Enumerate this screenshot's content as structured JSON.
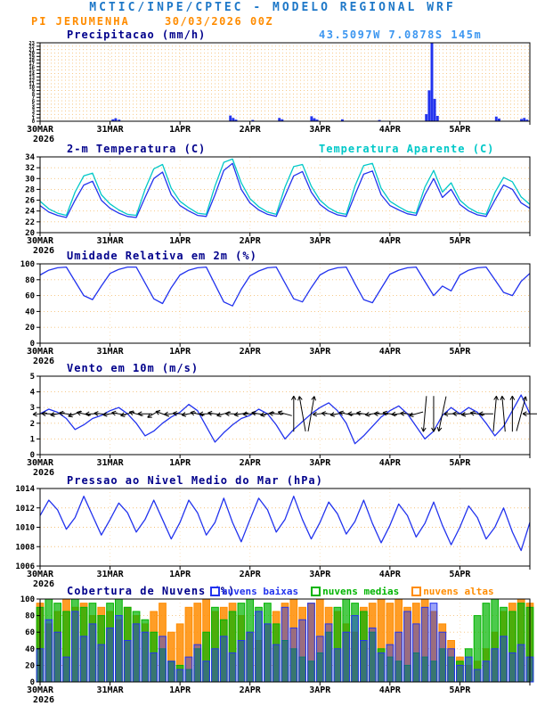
{
  "header": {
    "title": "MCTIC/INPE/CPTEC - MODELO REGIONAL WRF",
    "station": "PI JERUMENHA",
    "run": "30/03/2026 00Z",
    "coords": "43.5097W 7.0878S 145m"
  },
  "x_axis": {
    "labels": [
      "30MAR",
      "31MAR",
      "1APR",
      "2APR",
      "3APR",
      "4APR",
      "5APR"
    ],
    "year": "2026",
    "days_total": 7,
    "time_step_days": 0.125
  },
  "colors": {
    "title_blue": "#1e78c8",
    "light_blue": "#3c96f0",
    "orange": "#ff8c00",
    "navy": "#00008b",
    "blue": "#2233ee",
    "cyan": "#00c8c8",
    "green": "#00b400",
    "grid": "#f0a030",
    "black": "#000000"
  },
  "chart_data": [
    {
      "id": "precipitacao",
      "type": "bar",
      "title": "Precipitacao (mm/h)",
      "ylim": [
        0,
        23
      ],
      "ytick_step": 1,
      "bar_color_key": "blue",
      "bars": [
        [
          1.04,
          0.5
        ],
        [
          1.08,
          0.8
        ],
        [
          1.13,
          0.4
        ],
        [
          2.72,
          1.6
        ],
        [
          2.76,
          0.9
        ],
        [
          2.8,
          0.4
        ],
        [
          3.04,
          0.3
        ],
        [
          3.42,
          0.9
        ],
        [
          3.46,
          0.5
        ],
        [
          3.88,
          1.4
        ],
        [
          3.92,
          0.8
        ],
        [
          3.96,
          0.4
        ],
        [
          4.32,
          0.5
        ],
        [
          4.85,
          0.3
        ],
        [
          5.52,
          2.0
        ],
        [
          5.56,
          9.0
        ],
        [
          5.6,
          23.0
        ],
        [
          5.64,
          6.5
        ],
        [
          5.68,
          1.5
        ],
        [
          6.52,
          1.3
        ],
        [
          6.56,
          0.7
        ],
        [
          6.88,
          0.6
        ],
        [
          6.92,
          0.9
        ],
        [
          6.96,
          0.4
        ]
      ]
    },
    {
      "id": "temperatura",
      "type": "line",
      "title": "2-m Temperatura (C)",
      "title2": "Temperatura Aparente (C)",
      "ylim": [
        20,
        34
      ],
      "ytick_step": 2,
      "series": [
        {
          "name": "2-m Temperatura (C)",
          "color_key": "blue",
          "values": [
            25.0,
            23.8,
            23.2,
            22.8,
            26.0,
            28.8,
            29.5,
            26.0,
            24.5,
            23.6,
            23.0,
            22.8,
            26.5,
            30.0,
            31.2,
            27.0,
            25.0,
            24.0,
            23.2,
            23.0,
            27.0,
            31.5,
            32.8,
            28.0,
            25.5,
            24.2,
            23.4,
            23.0,
            26.8,
            30.5,
            31.3,
            27.5,
            25.2,
            24.0,
            23.3,
            23.0,
            27.0,
            30.8,
            31.4,
            27.0,
            25.0,
            24.2,
            23.5,
            23.2,
            27.0,
            30.0,
            26.5,
            28.0,
            25.2,
            24.0,
            23.3,
            23.0,
            26.0,
            28.8,
            28.0,
            25.5,
            24.5
          ]
        },
        {
          "name": "Temperatura Aparente (C)",
          "color_key": "cyan",
          "values": [
            25.8,
            24.4,
            23.6,
            23.2,
            27.5,
            30.5,
            31.0,
            27.0,
            25.3,
            24.2,
            23.4,
            23.2,
            28.0,
            31.8,
            32.6,
            28.2,
            25.8,
            24.6,
            23.6,
            23.4,
            28.6,
            33.0,
            33.6,
            29.2,
            26.3,
            24.8,
            23.8,
            23.4,
            28.4,
            32.2,
            32.6,
            28.6,
            26.0,
            24.6,
            23.7,
            23.4,
            28.6,
            32.4,
            32.8,
            28.2,
            25.8,
            24.8,
            23.9,
            23.6,
            28.4,
            31.5,
            27.5,
            29.2,
            26.0,
            24.6,
            23.7,
            23.4,
            27.4,
            30.2,
            29.4,
            26.6,
            25.2
          ]
        }
      ]
    },
    {
      "id": "umidade",
      "type": "line",
      "title": "Umidade Relativa em 2m (%)",
      "ylim": [
        0,
        100
      ],
      "ytick_step": 20,
      "series": [
        {
          "name": "Umidade Relativa em 2m (%)",
          "color_key": "blue",
          "values": [
            86,
            92,
            95,
            96,
            78,
            60,
            55,
            72,
            88,
            93,
            96,
            96,
            76,
            56,
            50,
            70,
            86,
            92,
            95,
            96,
            74,
            52,
            47,
            68,
            85,
            91,
            95,
            96,
            76,
            56,
            52,
            70,
            86,
            92,
            95,
            96,
            75,
            55,
            51,
            69,
            87,
            92,
            95,
            96,
            78,
            60,
            72,
            66,
            86,
            92,
            95,
            96,
            80,
            64,
            60,
            78,
            88
          ]
        }
      ]
    },
    {
      "id": "vento",
      "type": "line",
      "title": "Vento em 10m (m/s)",
      "ylim": [
        0,
        5
      ],
      "ytick_step": 1,
      "series": [
        {
          "name": "Vento em 10m (m/s)",
          "color_key": "blue",
          "values": [
            2.6,
            2.9,
            2.7,
            2.3,
            1.6,
            1.9,
            2.3,
            2.5,
            2.8,
            3.0,
            2.6,
            2.0,
            1.2,
            1.5,
            2.0,
            2.4,
            2.7,
            3.2,
            2.8,
            1.8,
            0.8,
            1.4,
            1.9,
            2.3,
            2.5,
            2.9,
            2.6,
            1.9,
            1.0,
            1.6,
            2.1,
            2.6,
            3.0,
            3.3,
            2.8,
            2.0,
            0.7,
            1.2,
            1.8,
            2.4,
            2.8,
            3.1,
            2.6,
            1.8,
            1.0,
            1.5,
            2.5,
            3.0,
            2.6,
            3.0,
            2.7,
            2.0,
            1.2,
            1.8,
            2.8,
            3.8,
            2.6
          ]
        }
      ],
      "arrows": {
        "y_center": 2.6,
        "dirs_deg": [
          185,
          178,
          190,
          172,
          200,
          168,
          182,
          175,
          188,
          170,
          195,
          165,
          180,
          210,
          160,
          185,
          175,
          190,
          168,
          182,
          172,
          195,
          178,
          188,
          182,
          170,
          192,
          176,
          165,
          90,
          100,
          80,
          185,
          175,
          190,
          168,
          180,
          172,
          188,
          178,
          170,
          185,
          175,
          195,
          265,
          270,
          258,
          182,
          178,
          188,
          172,
          180,
          85,
          95,
          90,
          75,
          180
        ]
      }
    },
    {
      "id": "pressao",
      "type": "line",
      "title": "Pressao ao Nivel Medio do Mar (hPa)",
      "ylim": [
        1006,
        1014
      ],
      "ytick_step": 2,
      "series": [
        {
          "name": "Pressao ao Nivel Medio do Mar (hPa)",
          "color_key": "blue",
          "values": [
            1011.2,
            1012.8,
            1011.8,
            1009.8,
            1011.0,
            1013.2,
            1011.2,
            1009.2,
            1010.8,
            1012.5,
            1011.5,
            1009.5,
            1010.8,
            1012.8,
            1010.8,
            1008.8,
            1010.5,
            1012.8,
            1011.5,
            1009.2,
            1010.5,
            1013.0,
            1010.5,
            1008.5,
            1010.8,
            1013.0,
            1011.8,
            1009.5,
            1010.8,
            1013.2,
            1010.8,
            1008.8,
            1010.5,
            1012.6,
            1011.4,
            1009.3,
            1010.6,
            1012.8,
            1010.4,
            1008.4,
            1010.2,
            1012.4,
            1011.2,
            1009.0,
            1010.4,
            1012.6,
            1010.2,
            1008.2,
            1010.0,
            1012.2,
            1011.0,
            1008.8,
            1010.0,
            1012.0,
            1009.5,
            1007.6,
            1010.5
          ]
        }
      ]
    },
    {
      "id": "nuvens",
      "type": "bar-multi",
      "title": "Cobertura de Nuvens (%)",
      "ylim": [
        0,
        100
      ],
      "ytick_step": 20,
      "legend": [
        {
          "label": "nuvens baixas",
          "color_key": "blue"
        },
        {
          "label": "nuvens medias",
          "color_key": "green"
        },
        {
          "label": "nuvens altas",
          "color_key": "orange"
        }
      ],
      "series": [
        {
          "name": "nuvens altas",
          "color_key": "orange",
          "values": [
            95,
            70,
            85,
            100,
            90,
            95,
            80,
            90,
            85,
            75,
            90,
            80,
            70,
            85,
            95,
            60,
            70,
            90,
            95,
            100,
            85,
            90,
            95,
            80,
            60,
            50,
            70,
            85,
            95,
            100,
            90,
            95,
            100,
            90,
            85,
            70,
            60,
            90,
            95,
            100,
            95,
            100,
            90,
            95,
            100,
            85,
            70,
            50,
            30,
            20,
            25,
            40,
            60,
            85,
            95,
            100,
            95
          ]
        },
        {
          "name": "nuvens medias",
          "color_key": "green",
          "values": [
            90,
            100,
            95,
            85,
            100,
            90,
            95,
            80,
            95,
            100,
            90,
            85,
            75,
            60,
            40,
            25,
            20,
            15,
            40,
            60,
            90,
            75,
            85,
            95,
            100,
            90,
            95,
            70,
            50,
            40,
            30,
            25,
            35,
            60,
            90,
            100,
            95,
            85,
            60,
            40,
            30,
            25,
            20,
            35,
            30,
            25,
            40,
            30,
            25,
            40,
            80,
            95,
            100,
            90,
            85,
            95,
            90
          ]
        },
        {
          "name": "nuvens baixas",
          "color_key": "blue",
          "values": [
            40,
            75,
            60,
            30,
            85,
            55,
            70,
            45,
            65,
            80,
            50,
            70,
            60,
            35,
            55,
            25,
            15,
            30,
            45,
            25,
            40,
            55,
            35,
            50,
            60,
            85,
            70,
            45,
            90,
            65,
            75,
            95,
            55,
            70,
            40,
            60,
            80,
            50,
            65,
            35,
            45,
            60,
            85,
            70,
            90,
            95,
            60,
            40,
            20,
            30,
            15,
            25,
            40,
            55,
            35,
            45,
            30
          ]
        }
      ]
    }
  ]
}
